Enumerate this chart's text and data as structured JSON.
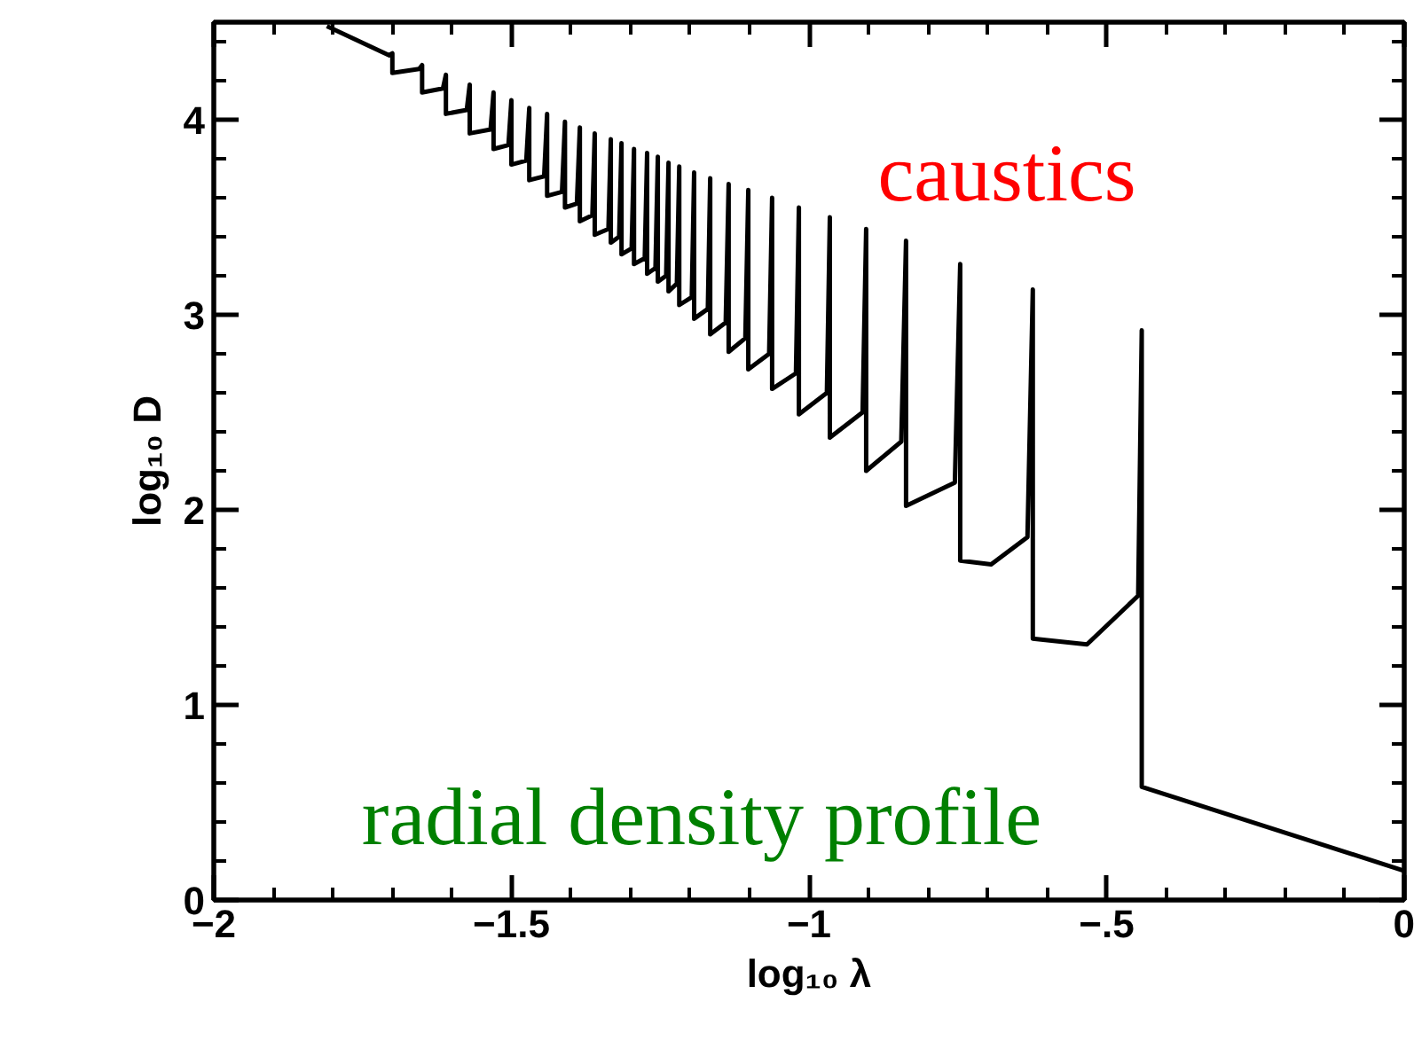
{
  "chart_data": {
    "type": "line",
    "xlabel": "log₁₀ λ",
    "ylabel": "log₁₀ D",
    "x": [
      -1.81,
      -1.705,
      -1.7,
      -1.7,
      -1.655,
      -1.65,
      -1.65,
      -1.615,
      -1.61,
      -1.61,
      -1.575,
      -1.57,
      -1.57,
      -1.535,
      -1.53,
      -1.53,
      -1.505,
      -1.5,
      -1.5,
      -1.475,
      -1.47,
      -1.47,
      -1.445,
      -1.44,
      -1.44,
      -1.415,
      -1.41,
      -1.41,
      -1.39,
      -1.385,
      -1.385,
      -1.364,
      -1.36,
      -1.36,
      -1.337,
      -1.333,
      -1.333,
      -1.319,
      -1.315,
      -1.315,
      -1.298,
      -1.294,
      -1.294,
      -1.276,
      -1.272,
      -1.272,
      -1.258,
      -1.254,
      -1.254,
      -1.24,
      -1.236,
      -1.236,
      -1.222,
      -1.218,
      -1.218,
      -1.197,
      -1.193,
      -1.193,
      -1.17,
      -1.166,
      -1.166,
      -1.14,
      -1.135,
      -1.135,
      -1.107,
      -1.102,
      -1.102,
      -1.067,
      -1.062,
      -1.062,
      -1.022,
      -1.017,
      -1.017,
      -0.97,
      -0.965,
      -0.965,
      -0.91,
      -0.904,
      -0.904,
      -0.845,
      -0.837,
      -0.837,
      -0.755,
      -0.746,
      -0.746,
      -0.694,
      -0.633,
      -0.624,
      -0.624,
      -0.533,
      -0.447,
      -0.441,
      -0.441,
      0
    ],
    "series": [
      {
        "color": "#000000",
        "values": [
          4.48,
          4.33,
          4.34,
          4.24,
          4.26,
          4.28,
          4.14,
          4.16,
          4.23,
          4.03,
          4.05,
          4.18,
          3.93,
          3.95,
          4.14,
          3.85,
          3.87,
          4.1,
          3.77,
          3.79,
          4.06,
          3.69,
          3.71,
          4.03,
          3.61,
          3.63,
          3.99,
          3.55,
          3.57,
          3.96,
          3.48,
          3.51,
          3.93,
          3.41,
          3.44,
          3.9,
          3.37,
          3.4,
          3.88,
          3.31,
          3.34,
          3.85,
          3.26,
          3.29,
          3.83,
          3.21,
          3.24,
          3.81,
          3.17,
          3.2,
          3.78,
          3.12,
          3.16,
          3.76,
          3.05,
          3.09,
          3.73,
          2.98,
          3.03,
          3.7,
          2.9,
          2.96,
          3.67,
          2.81,
          2.88,
          3.64,
          2.72,
          2.8,
          3.6,
          2.62,
          2.7,
          3.55,
          2.49,
          2.6,
          3.5,
          2.37,
          2.5,
          3.44,
          2.2,
          2.35,
          3.38,
          2.02,
          2.14,
          3.26,
          1.74,
          1.72,
          1.86,
          3.13,
          1.34,
          1.31,
          1.56,
          2.92,
          0.58,
          0.15
        ]
      }
    ],
    "xlim": [
      -2,
      0
    ],
    "ylim": [
      0,
      4.5
    ],
    "xticks": [
      -2,
      -1.5,
      -1,
      {
        "value": -0.5,
        "label": "−.5"
      },
      0
    ],
    "yticks": [
      0,
      1,
      2,
      3,
      4
    ],
    "marker": "none",
    "line_style": "solid",
    "grid": false,
    "annotations": [
      "caustics",
      "radial density profile"
    ]
  }
}
